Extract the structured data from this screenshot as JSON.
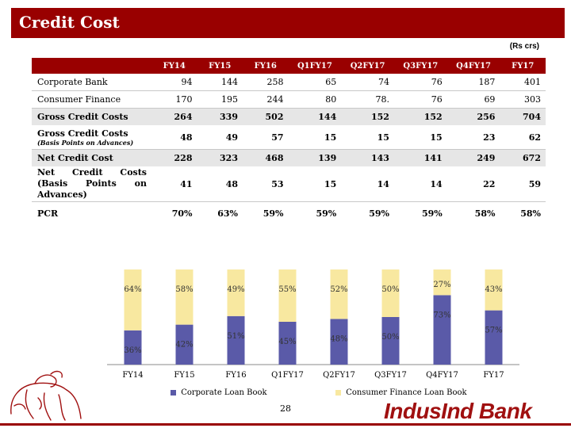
{
  "header": {
    "title": "Credit Cost",
    "units": "(Rs crs)"
  },
  "table": {
    "columns": [
      "FY14",
      "FY15",
      "FY16",
      "Q1FY17",
      "Q2FY17",
      "Q3FY17",
      "Q4FY17",
      "FY17"
    ],
    "rows": [
      {
        "label": "Corporate Bank",
        "values": [
          "94",
          "144",
          "258",
          "65",
          "74",
          "76",
          "187",
          "401"
        ]
      },
      {
        "label": "Consumer Finance",
        "values": [
          "170",
          "195",
          "244",
          "80",
          "78.",
          "76",
          "69",
          "303"
        ]
      },
      {
        "label": "Gross Credit Costs",
        "values": [
          "264",
          "339",
          "502",
          "144",
          "152",
          "152",
          "256",
          "704"
        ]
      },
      {
        "label": "Gross Credit Costs",
        "sublabel": "(Basis Points on Advances)",
        "values": [
          "48",
          "49",
          "57",
          "15",
          "15",
          "15",
          "23",
          "62"
        ]
      },
      {
        "label": "Net Credit Cost",
        "values": [
          "228",
          "323",
          "468",
          "139",
          "143",
          "141",
          "249",
          "672"
        ]
      },
      {
        "label_lines": [
          "Net Credit Costs",
          "(Basis Points on",
          "Advances)"
        ],
        "values": [
          "41",
          "48",
          "53",
          "15",
          "14",
          "14",
          "22",
          "59"
        ]
      },
      {
        "label": "PCR",
        "values": [
          "70%",
          "63%",
          "59%",
          "59%",
          "59%",
          "59%",
          "58%",
          "58%"
        ]
      }
    ]
  },
  "chart_data": {
    "type": "bar",
    "stacked": true,
    "percent": true,
    "categories": [
      "FY14",
      "FY15",
      "FY16",
      "Q1FY17",
      "Q2FY17",
      "Q3FY17",
      "Q4FY17",
      "FY17"
    ],
    "series": [
      {
        "name": "Corporate Loan Book",
        "color": "#5a5aa8",
        "values": [
          36,
          42,
          51,
          45,
          48,
          50,
          73,
          57
        ],
        "labels": [
          "36%",
          "42%",
          "51%",
          "45%",
          "48%",
          "50%",
          "73%",
          "57%"
        ]
      },
      {
        "name": "Consumer Finance Loan Book",
        "color": "#f8e8a0",
        "values": [
          64,
          58,
          49,
          55,
          52,
          50,
          27,
          43
        ],
        "labels": [
          "64%",
          "58%",
          "49%",
          "55%",
          "52%",
          "50%",
          "27%",
          "43%"
        ]
      }
    ],
    "ylim": [
      0,
      100
    ]
  },
  "footer": {
    "page_number": "28",
    "brand": "IndusInd Bank"
  },
  "colors": {
    "brand": "#990000",
    "corporate": "#5a5aa8",
    "consumer": "#f8e8a0"
  }
}
